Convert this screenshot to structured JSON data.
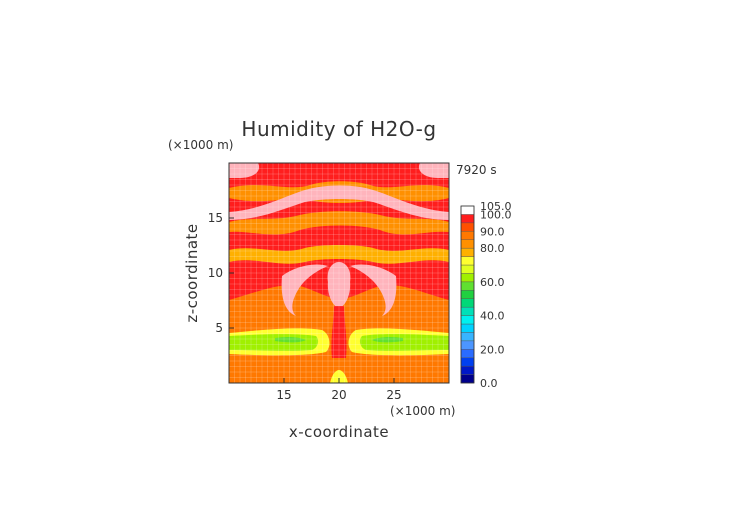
{
  "chart_data": {
    "type": "heatmap",
    "title": "Humidity of H2O-g",
    "xlabel": "x-coordinate",
    "ylabel": "z-coordinate",
    "x_unit": "(×1000 m)",
    "y_unit": "(×1000 m)",
    "time_label": "7920 s",
    "xlim": [
      10,
      30
    ],
    "ylim": [
      0,
      20
    ],
    "x_ticks": [
      15,
      20,
      25
    ],
    "y_ticks": [
      5,
      10,
      15
    ],
    "grid": true,
    "colorbar": {
      "levels": [
        0,
        5,
        10,
        15,
        20,
        25,
        30,
        35,
        40,
        45,
        50,
        55,
        60,
        65,
        70,
        75,
        80,
        85,
        90,
        95,
        100,
        105
      ],
      "tick_labels": [
        "0.0",
        "20.0",
        "40.0",
        "60.0",
        "80.0",
        "90.0",
        "100.0",
        "105.0"
      ],
      "tick_values": [
        0,
        20,
        40,
        60,
        80,
        90,
        100,
        105
      ],
      "colors": [
        "#00008c",
        "#0018c8",
        "#0040f0",
        "#2a6cff",
        "#4c96ff",
        "#38b4ff",
        "#00d2ff",
        "#00f0f0",
        "#00e0b8",
        "#00d878",
        "#20d040",
        "#60e030",
        "#a0f000",
        "#e0ff20",
        "#ffff30",
        "#ffb000",
        "#ff9000",
        "#ff7800",
        "#ff5000",
        "#ff1e1e",
        "#ffffff"
      ]
    }
  }
}
